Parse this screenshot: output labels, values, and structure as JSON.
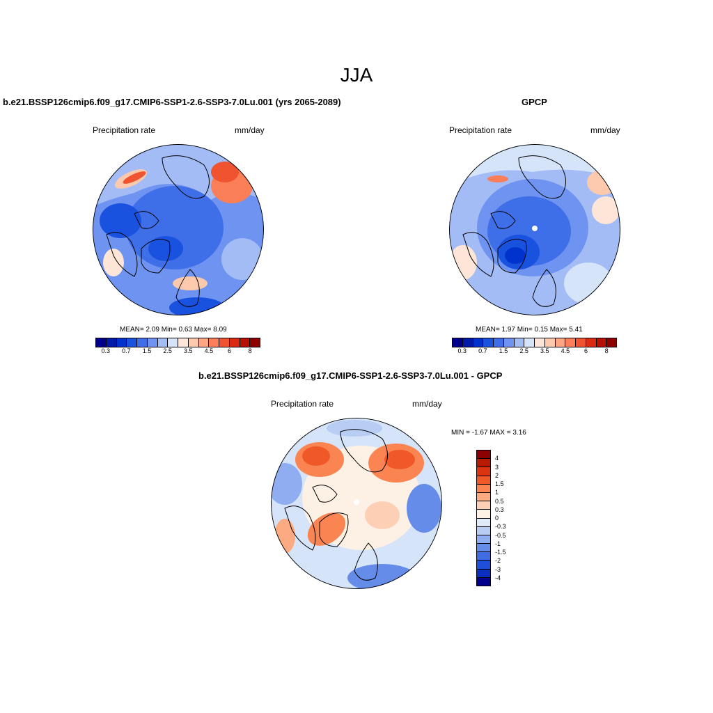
{
  "title": "JJA",
  "panels": {
    "model": {
      "title": "b.e21.BSSP126cmip6.f09_g17.CMIP6-SSP1-2.6-SSP3-7.0Lu.001 (yrs 2065-2089)",
      "variable": "Precipitation rate",
      "units": "mm/day",
      "stats": "MEAN=   2.09  Min=    0.63  Max=    8.09"
    },
    "obs": {
      "title": "GPCP",
      "variable": "Precipitation rate",
      "units": "mm/day",
      "stats": "MEAN=   1.97  Min=    0.15  Max=    5.41"
    },
    "diff": {
      "title": "b.e21.BSSP126cmip6.f09_g17.CMIP6-SSP1-2.6-SSP3-7.0Lu.001 - GPCP",
      "variable": "Precipitation rate",
      "units": "mm/day",
      "stats": "MIN =  -1.67 MAX =   3.16"
    }
  },
  "colorbar_abs": {
    "colors": [
      "#00008b",
      "#0019a6",
      "#0033cc",
      "#1a52e0",
      "#3f6fe8",
      "#6e93f0",
      "#a3bcf5",
      "#d6e4fa",
      "#fde6d8",
      "#fcc9ad",
      "#fca683",
      "#fa7f58",
      "#ef5330",
      "#d92b12",
      "#b80f04",
      "#8b0000"
    ],
    "labels": [
      "0.3",
      "0.7",
      "1.5",
      "2.5",
      "3.5",
      "4.5",
      "6",
      "8"
    ]
  },
  "colorbar_diff": {
    "colors": [
      "#8b0000",
      "#b81a05",
      "#dc3412",
      "#f05828",
      "#fa8552",
      "#fcaa82",
      "#fdd0b5",
      "#fdf0e4",
      "#deeaf8",
      "#b8cdf4",
      "#8fadf0",
      "#668cea",
      "#3f6be3",
      "#1f4ed8",
      "#0a2fc0",
      "#00008b"
    ],
    "labels": [
      "4",
      "3",
      "2",
      "1.5",
      "1",
      "0.5",
      "0.3",
      "0",
      "-0.3",
      "-0.5",
      "-1",
      "-1.5",
      "-2",
      "-3",
      "-4"
    ]
  }
}
